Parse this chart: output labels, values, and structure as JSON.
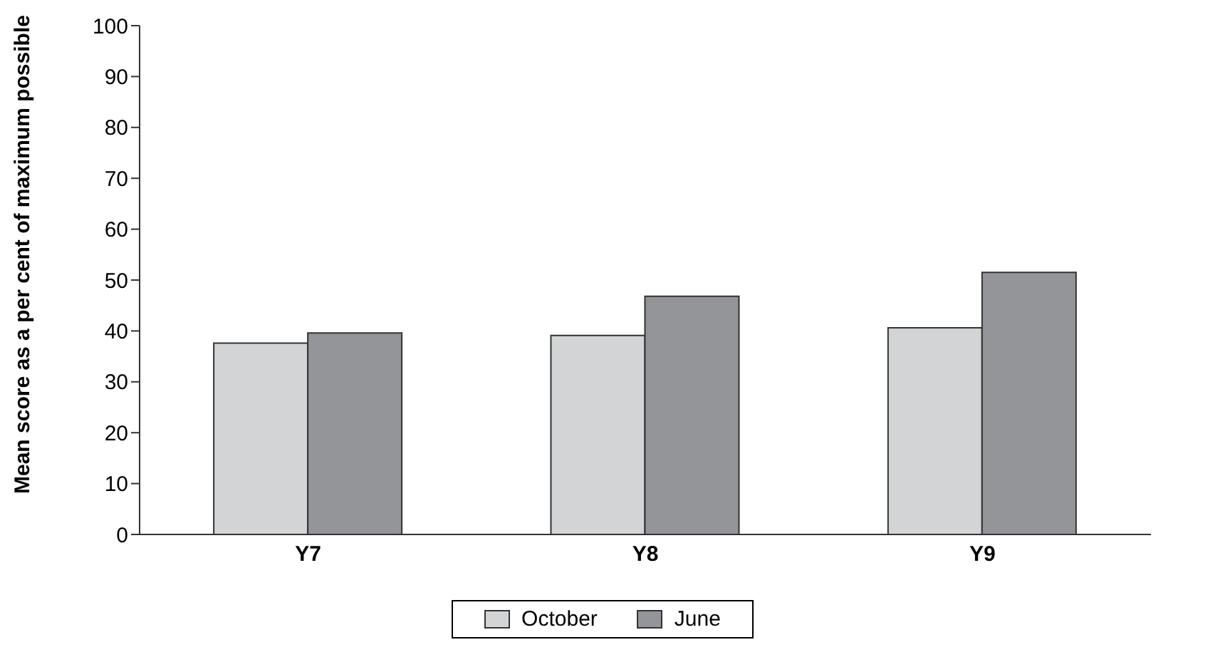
{
  "chart_data": {
    "type": "bar",
    "ylabel": "Mean score as a per cent of maximum possible",
    "categories": [
      "Y7",
      "Y8",
      "Y9"
    ],
    "series": [
      {
        "name": "October",
        "color": "#d3d4d6",
        "values": [
          37.6,
          39.1,
          40.6
        ]
      },
      {
        "name": "June",
        "color": "#949599",
        "values": [
          39.6,
          46.8,
          51.5
        ]
      }
    ],
    "ylim": [
      0,
      100
    ],
    "yticks": [
      0,
      10,
      20,
      30,
      40,
      50,
      60,
      70,
      80,
      90,
      100
    ],
    "grid": false,
    "legend": "bottom"
  }
}
